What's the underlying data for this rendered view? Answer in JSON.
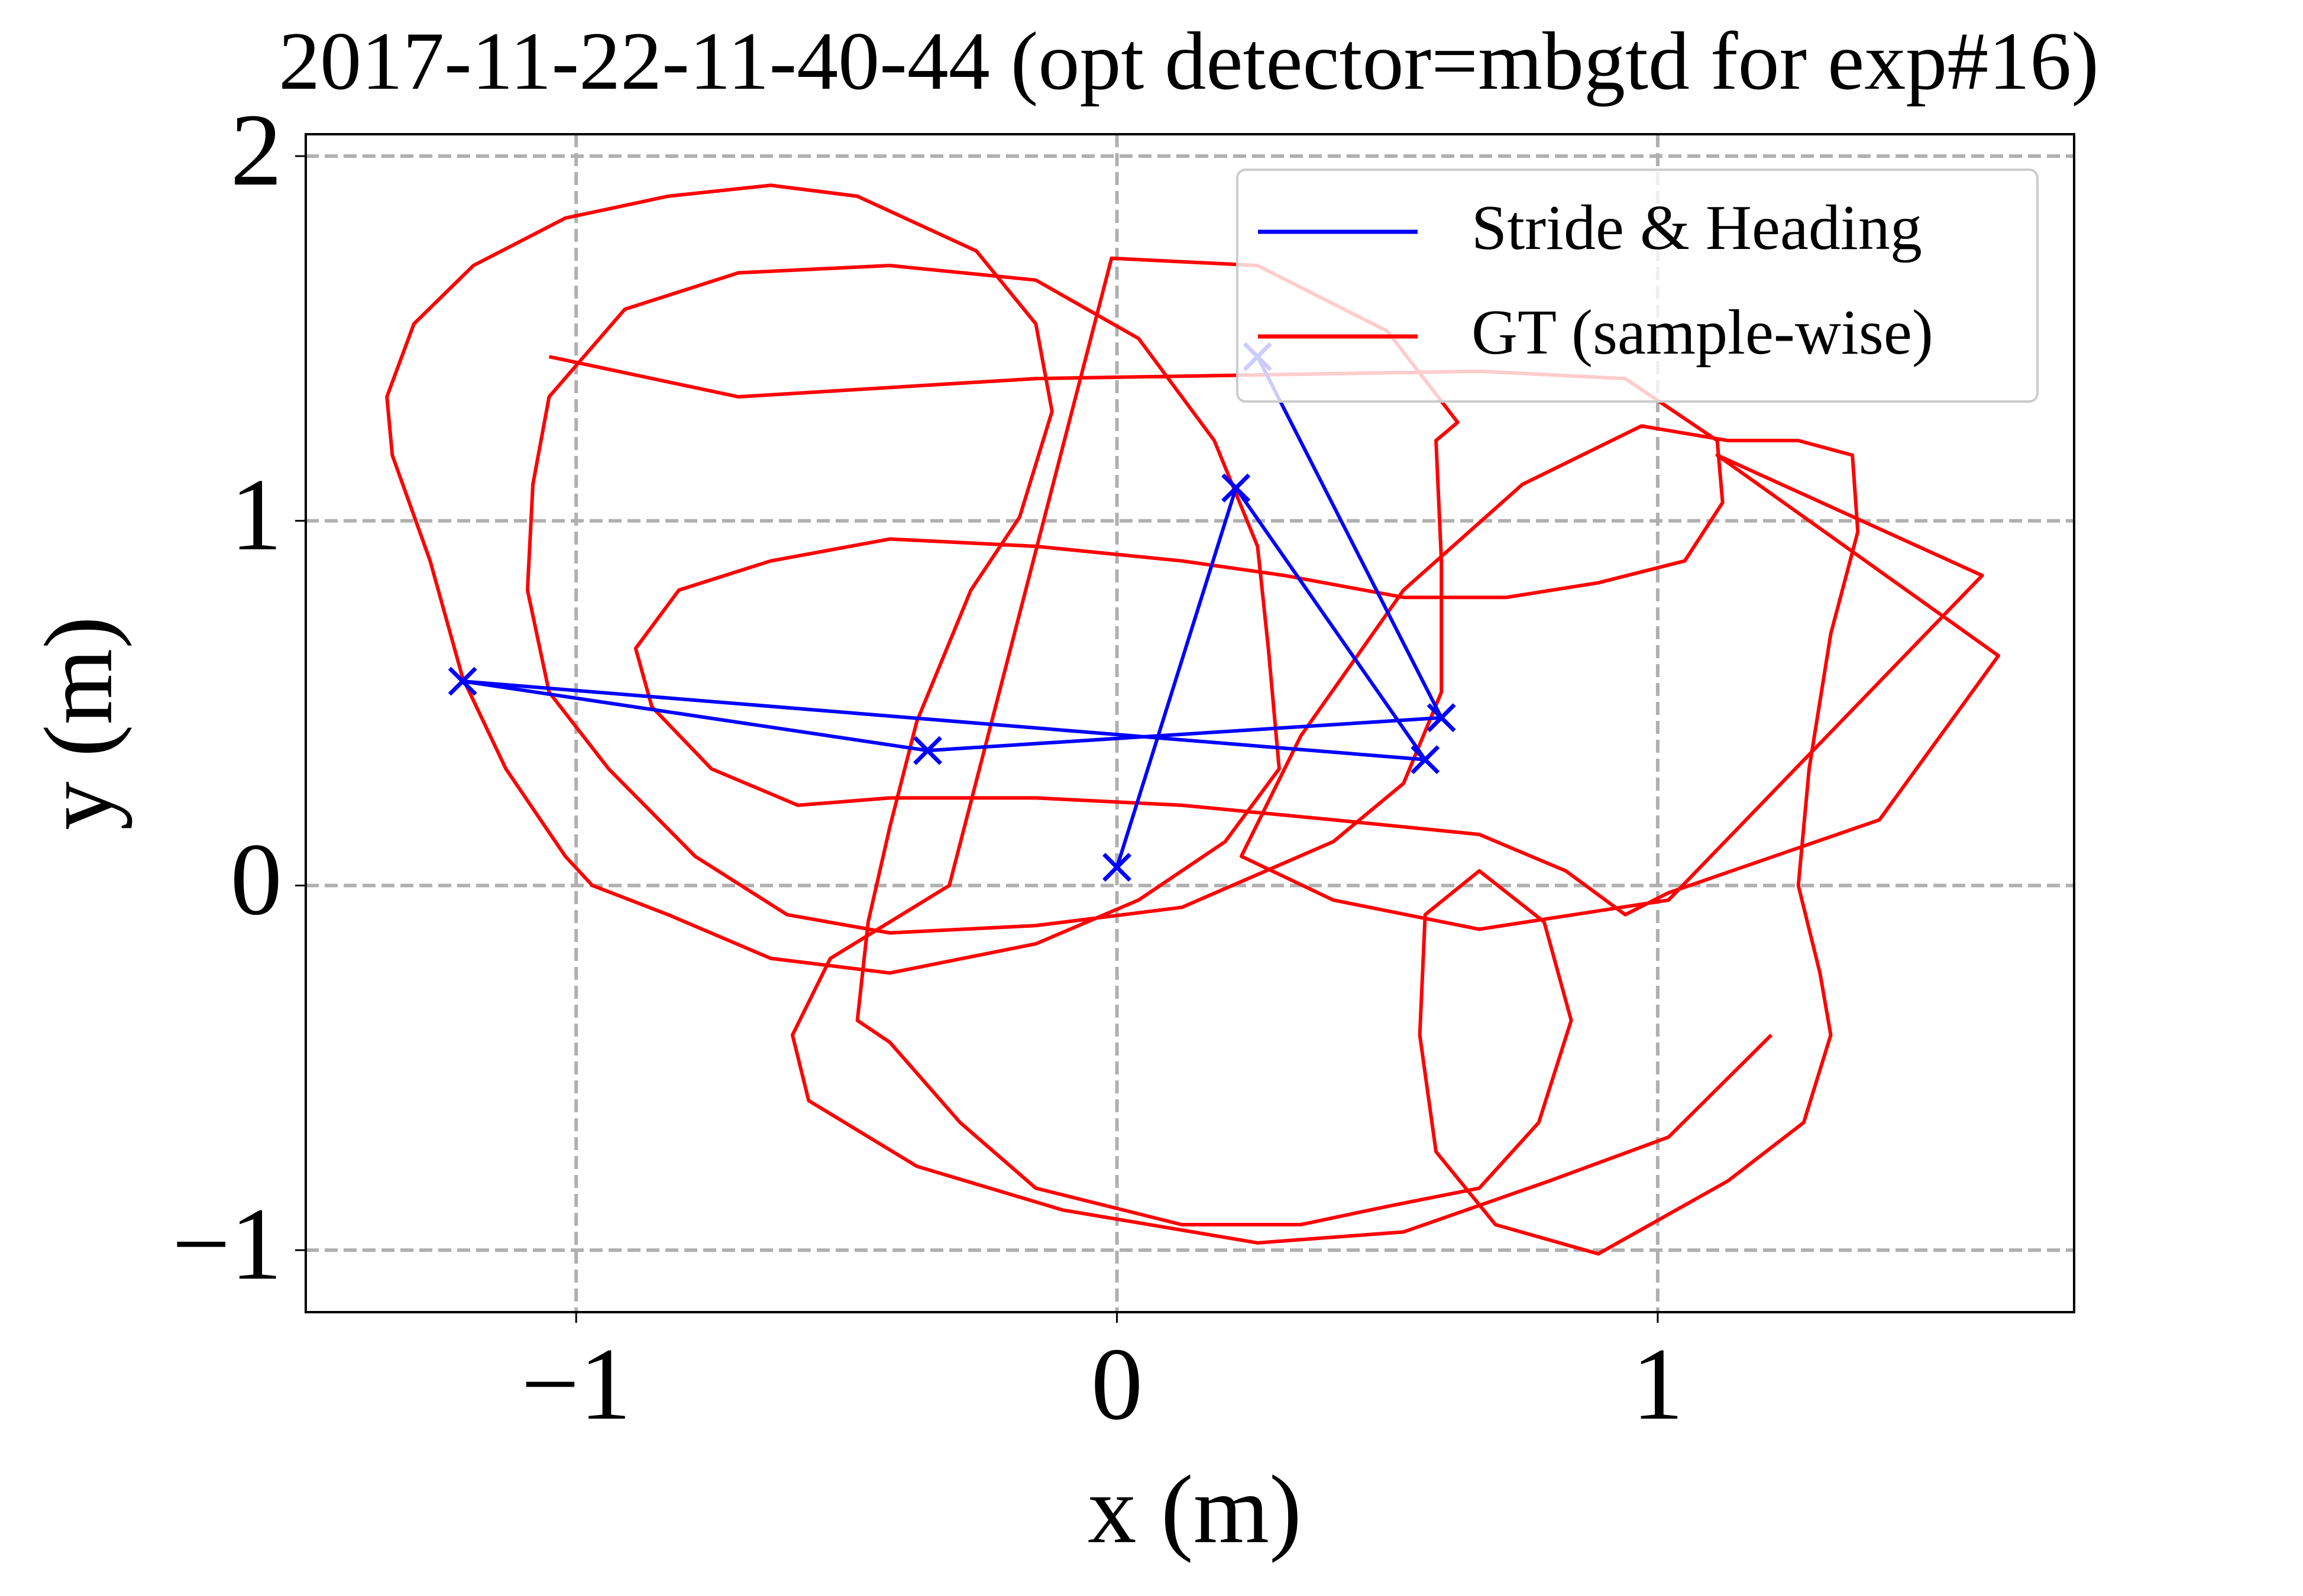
{
  "chart_data": {
    "type": "line",
    "title": "2017-11-22-11-40-44 (opt detector=mbgtd for exp#16)",
    "x_label": "x (m)",
    "y_label": "y (m)",
    "xlim": [
      -1.5,
      1.77
    ],
    "ylim": [
      -1.17,
      2.06
    ],
    "xticks": [
      {
        "value": -1,
        "label": "−1"
      },
      0,
      1
    ],
    "yticks": [
      {
        "value": -1,
        "label": "−1"
      },
      0,
      1,
      2
    ],
    "grid": true,
    "legend": "upper right",
    "series": [
      {
        "name": "Stride & Heading",
        "color": "#0000ff",
        "marker": "x",
        "x": [
          0,
          0.22,
          0.57,
          -1.21,
          -0.35,
          0.6,
          0.26
        ],
        "y": [
          0.05,
          1.09,
          0.345,
          0.56,
          0.37,
          0.46,
          1.45
        ]
      },
      {
        "name": "GT (sample-wise)",
        "color": "#ff0000",
        "x": [
          -1.05,
          -0.7,
          -0.15,
          0.26,
          0.67,
          0.94,
          1.11,
          1.12,
          1.05,
          0.89,
          0.72,
          0.53,
          0.31,
          0.12,
          -0.15,
          -0.42,
          -0.64,
          -0.81,
          -0.89,
          -0.86,
          -0.75,
          -0.59,
          -0.42,
          -0.15,
          0.12,
          0.4,
          0.67,
          0.83,
          0.94,
          1.02,
          1.41,
          1.63,
          1.11,
          1.6,
          1.02,
          0.67,
          0.4,
          0.23,
          0.34,
          0.53,
          0.75,
          0.97,
          1.13,
          1.26,
          1.36,
          1.37,
          1.32,
          1.28,
          1.26,
          1.3,
          1.32,
          1.27,
          1.13,
          0.89,
          0.7,
          0.59,
          0.56,
          0.57,
          0.67,
          0.79,
          0.84,
          0.78,
          0.67,
          0.5,
          0.34,
          0.12,
          -0.15,
          -0.29,
          -0.42,
          -0.48,
          -0.46,
          -0.42,
          -0.37,
          -0.27,
          -0.18,
          -0.12,
          -0.15,
          -0.26,
          -0.48,
          -0.64,
          -0.83,
          -1.02,
          -1.19,
          -1.3,
          -1.35,
          -1.34,
          -1.27,
          -1.21,
          -1.13,
          -1.02,
          -0.97,
          -0.83,
          -0.64,
          -0.42,
          -0.15,
          0.04,
          0.2,
          0.3,
          0.28,
          0.26,
          0.18,
          0.04,
          -0.15,
          -0.42,
          -0.7,
          -0.91,
          -1.05,
          -1.08,
          -1.09,
          -1.05,
          -0.94,
          -0.78,
          -0.61,
          -0.42,
          -0.15,
          0.12,
          0.4,
          0.53,
          0.6,
          0.6,
          0.59,
          0.63,
          0.5,
          0.26,
          -0.01,
          -0.31,
          -0.53,
          -0.6,
          -0.57,
          -0.37,
          -0.1,
          0.26,
          0.53,
          0.8,
          1.02,
          1.21
        ],
        "y": [
          1.45,
          1.34,
          1.39,
          1.4,
          1.41,
          1.39,
          1.22,
          1.05,
          0.89,
          0.83,
          0.79,
          0.79,
          0.85,
          0.89,
          0.93,
          0.95,
          0.89,
          0.81,
          0.65,
          0.49,
          0.32,
          0.22,
          0.24,
          0.24,
          0.22,
          0.18,
          0.14,
          0.04,
          -0.08,
          -0.02,
          0.18,
          0.63,
          1.18,
          0.85,
          -0.04,
          -0.12,
          -0.04,
          0.08,
          0.41,
          0.81,
          1.1,
          1.26,
          1.22,
          1.22,
          1.18,
          0.97,
          0.69,
          0.32,
          0.0,
          -0.24,
          -0.41,
          -0.65,
          -0.81,
          -1.01,
          -0.93,
          -0.73,
          -0.41,
          -0.08,
          0.04,
          -0.1,
          -0.37,
          -0.65,
          -0.83,
          -0.88,
          -0.93,
          -0.93,
          -0.83,
          -0.65,
          -0.43,
          -0.37,
          -0.1,
          0.16,
          0.45,
          0.81,
          1.01,
          1.3,
          1.54,
          1.74,
          1.89,
          1.92,
          1.89,
          1.83,
          1.7,
          1.54,
          1.34,
          1.18,
          0.89,
          0.57,
          0.32,
          0.08,
          0.0,
          -0.08,
          -0.2,
          -0.24,
          -0.16,
          -0.04,
          0.12,
          0.32,
          0.65,
          0.93,
          1.22,
          1.5,
          1.66,
          1.7,
          1.68,
          1.58,
          1.34,
          1.1,
          0.81,
          0.53,
          0.32,
          0.08,
          -0.08,
          -0.13,
          -0.11,
          -0.06,
          0.12,
          0.28,
          0.53,
          0.89,
          1.22,
          1.27,
          1.52,
          1.7,
          1.72,
          0.0,
          -0.2,
          -0.41,
          -0.59,
          -0.77,
          -0.89,
          -0.98,
          -0.95,
          -0.81,
          -0.69,
          -0.41
        ]
      }
    ]
  }
}
